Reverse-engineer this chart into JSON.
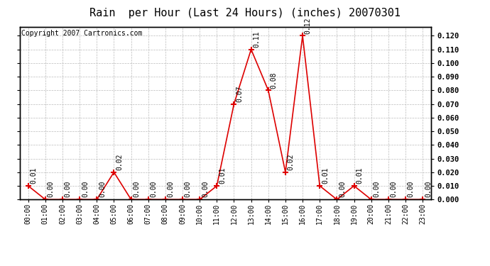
{
  "title": "Rain  per Hour (Last 24 Hours) (inches) 20070301",
  "copyright": "Copyright 2007 Cartronics.com",
  "hours": [
    "00:00",
    "01:00",
    "02:00",
    "03:00",
    "04:00",
    "05:00",
    "06:00",
    "07:00",
    "08:00",
    "09:00",
    "10:00",
    "11:00",
    "12:00",
    "13:00",
    "14:00",
    "15:00",
    "16:00",
    "17:00",
    "18:00",
    "19:00",
    "20:00",
    "21:00",
    "22:00",
    "23:00"
  ],
  "values": [
    0.01,
    0.0,
    0.0,
    0.0,
    0.0,
    0.02,
    0.0,
    0.0,
    0.0,
    0.0,
    0.0,
    0.01,
    0.07,
    0.11,
    0.08,
    0.02,
    0.12,
    0.01,
    0.0,
    0.01,
    0.0,
    0.0,
    0.0,
    0.0
  ],
  "line_color": "#dd0000",
  "marker_color": "#dd0000",
  "background_color": "#ffffff",
  "grid_color": "#bbbbbb",
  "ylim": [
    0.0,
    0.1267
  ],
  "yticks": [
    0.0,
    0.01,
    0.02,
    0.03,
    0.04,
    0.05,
    0.06,
    0.07,
    0.08,
    0.09,
    0.1,
    0.11,
    0.12
  ],
  "title_fontsize": 11,
  "copyright_fontsize": 7,
  "label_fontsize": 7,
  "tick_fontsize": 7.5,
  "xtick_fontsize": 7
}
